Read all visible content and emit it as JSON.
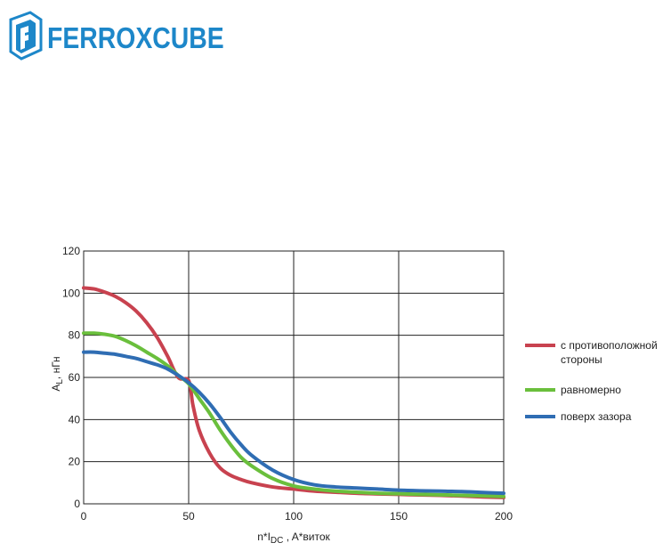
{
  "brand": {
    "name": "FERROXCUBE",
    "color": "#1d87c9"
  },
  "chart_data": {
    "type": "line",
    "title": "",
    "xlabel_main": "n*I",
    "xlabel_sub": "DC",
    "xlabel_rest": " , A*виток",
    "ylabel_main": "A",
    "ylabel_sub": "L",
    "ylabel_rest": ", нГн",
    "xlim": [
      0,
      200
    ],
    "ylim": [
      0,
      120
    ],
    "xticks": [
      0,
      50,
      100,
      150,
      200
    ],
    "yticks": [
      0,
      20,
      40,
      60,
      80,
      100,
      120
    ],
    "grid": true,
    "legend_position": "right",
    "series": [
      {
        "name_lines": [
          "с противоположной",
          "стороны"
        ],
        "color": "#c8424f",
        "x": [
          0,
          5,
          10,
          15,
          20,
          25,
          30,
          35,
          40,
          45,
          50,
          52,
          55,
          60,
          65,
          70,
          75,
          80,
          90,
          100,
          110,
          120,
          130,
          140,
          150,
          160,
          170,
          180,
          190,
          200
        ],
        "y": [
          102.5,
          102,
          100.5,
          98.5,
          95.5,
          91.5,
          86,
          79,
          70,
          60,
          58.5,
          47,
          35,
          24,
          17,
          13.5,
          11.5,
          10,
          8,
          7,
          6,
          5.5,
          5,
          4.7,
          4.5,
          4.2,
          4,
          3.7,
          3.3,
          3
        ]
      },
      {
        "name_lines": [
          "равномерно"
        ],
        "color": "#6abf3c",
        "x": [
          0,
          5,
          10,
          15,
          20,
          25,
          30,
          35,
          40,
          45,
          50,
          55,
          60,
          65,
          70,
          75,
          80,
          90,
          100,
          110,
          120,
          130,
          140,
          150,
          160,
          170,
          180,
          190,
          200
        ],
        "y": [
          81,
          81,
          80.5,
          79.5,
          77.5,
          75,
          72,
          69,
          65.5,
          61,
          57,
          50,
          43,
          35,
          28,
          22,
          18,
          12,
          8.5,
          7,
          6,
          5.5,
          5,
          4.8,
          4.5,
          4.3,
          4,
          3.8,
          3.5
        ]
      },
      {
        "name_lines": [
          "поверх зазора"
        ],
        "color": "#2f6db3",
        "x": [
          0,
          5,
          10,
          15,
          20,
          25,
          30,
          35,
          40,
          45,
          50,
          55,
          60,
          65,
          70,
          75,
          80,
          90,
          100,
          110,
          120,
          130,
          140,
          150,
          160,
          170,
          180,
          190,
          200
        ],
        "y": [
          72,
          72,
          71.5,
          71,
          70,
          69,
          67.5,
          66,
          64,
          61,
          57.5,
          53,
          47.5,
          41,
          34,
          28,
          23,
          16,
          11.5,
          9,
          8,
          7.5,
          7,
          6.5,
          6.2,
          6,
          5.8,
          5.4,
          5
        ]
      }
    ]
  }
}
